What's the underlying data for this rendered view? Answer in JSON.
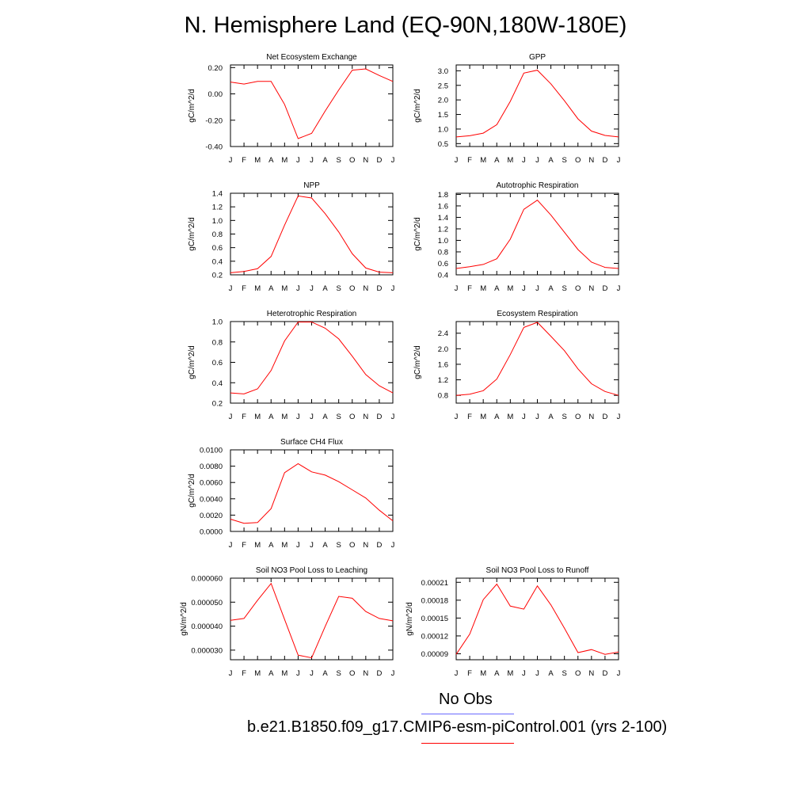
{
  "title": "N. Hemisphere Land (EQ-90N,180W-180E)",
  "colors": {
    "series": "#ff0000",
    "obs": "#6a6aff",
    "axis": "#000000"
  },
  "months": [
    "J",
    "F",
    "M",
    "A",
    "M",
    "J",
    "J",
    "A",
    "S",
    "O",
    "N",
    "D",
    "J"
  ],
  "legend": {
    "obs_label": "No Obs",
    "model_label": "b.e21.B1850.f09_g17.CMIP6-esm-piControl.001 (yrs 2-100)"
  },
  "chart_data": [
    {
      "type": "line",
      "title": "Net Ecosystem Exchange",
      "ylabel": "gC/m^2/d",
      "ylim": [
        -0.4,
        0.22
      ],
      "yticks": [
        -0.4,
        -0.2,
        0.0,
        0.2
      ],
      "ytick_labels": [
        "-0.40",
        "-0.20",
        "0.00",
        "0.20"
      ],
      "values": [
        0.09,
        0.075,
        0.095,
        0.095,
        -0.08,
        -0.34,
        -0.3,
        -0.13,
        0.03,
        0.18,
        0.19,
        0.14,
        0.095
      ]
    },
    {
      "type": "line",
      "title": "GPP",
      "ylabel": "gC/m^2/d",
      "ylim": [
        0.4,
        3.2
      ],
      "yticks": [
        0.5,
        1.0,
        1.5,
        2.0,
        2.5,
        3.0
      ],
      "ytick_labels": [
        "0.5",
        "1.0",
        "1.5",
        "2.0",
        "2.5",
        "3.0"
      ],
      "values": [
        0.73,
        0.77,
        0.86,
        1.15,
        1.95,
        2.92,
        3.02,
        2.55,
        1.97,
        1.35,
        0.93,
        0.78,
        0.73
      ]
    },
    {
      "type": "line",
      "title": "NPP",
      "ylabel": "gC/m^2/d",
      "ylim": [
        0.2,
        1.4
      ],
      "yticks": [
        0.2,
        0.4,
        0.6,
        0.8,
        1.0,
        1.2,
        1.4
      ],
      "ytick_labels": [
        "0.2",
        "0.4",
        "0.6",
        "0.8",
        "1.0",
        "1.2",
        "1.4"
      ],
      "values": [
        0.23,
        0.25,
        0.29,
        0.47,
        0.93,
        1.36,
        1.33,
        1.1,
        0.83,
        0.51,
        0.3,
        0.24,
        0.23
      ]
    },
    {
      "type": "line",
      "title": "Autotrophic Respiration",
      "ylabel": "gC/m^2/d",
      "ylim": [
        0.4,
        1.82
      ],
      "yticks": [
        0.4,
        0.6,
        0.8,
        1.0,
        1.2,
        1.4,
        1.6,
        1.8
      ],
      "ytick_labels": [
        "0.4",
        "0.6",
        "0.8",
        "1.0",
        "1.2",
        "1.4",
        "1.6",
        "1.8"
      ],
      "values": [
        0.51,
        0.54,
        0.58,
        0.68,
        1.02,
        1.54,
        1.7,
        1.44,
        1.14,
        0.84,
        0.62,
        0.53,
        0.51
      ]
    },
    {
      "type": "line",
      "title": "Heterotrophic Respiration",
      "ylabel": "gC/m^2/d",
      "ylim": [
        0.2,
        1.0
      ],
      "yticks": [
        0.2,
        0.4,
        0.6,
        0.8,
        1.0
      ],
      "ytick_labels": [
        "0.2",
        "0.4",
        "0.6",
        "0.8",
        "1.0"
      ],
      "values": [
        0.3,
        0.29,
        0.34,
        0.52,
        0.81,
        0.995,
        0.995,
        0.935,
        0.83,
        0.66,
        0.48,
        0.37,
        0.3
      ]
    },
    {
      "type": "line",
      "title": "Ecosystem Respiration",
      "ylabel": "gC/m^2/d",
      "ylim": [
        0.6,
        2.7
      ],
      "yticks": [
        0.8,
        1.2,
        1.6,
        2.0,
        2.4
      ],
      "ytick_labels": [
        "0.8",
        "1.2",
        "1.6",
        "2.0",
        "2.4"
      ],
      "values": [
        0.8,
        0.83,
        0.92,
        1.22,
        1.85,
        2.55,
        2.68,
        2.32,
        1.95,
        1.48,
        1.1,
        0.9,
        0.8
      ]
    },
    {
      "type": "line",
      "title": "Surface CH4 Flux",
      "ylabel": "gC/m^2/d",
      "ylim": [
        0.0,
        0.01
      ],
      "yticks": [
        0.0,
        0.002,
        0.004,
        0.006,
        0.008,
        0.01
      ],
      "ytick_labels": [
        "0.0000",
        "0.0020",
        "0.0040",
        "0.0060",
        "0.0080",
        "0.0100"
      ],
      "values": [
        0.0015,
        0.001,
        0.0011,
        0.0028,
        0.0072,
        0.0083,
        0.0073,
        0.0069,
        0.0061,
        0.0051,
        0.0041,
        0.0026,
        0.0013
      ]
    },
    {
      "type": "line",
      "title": "Soil NO3 Pool Loss to Leaching",
      "ylabel": "gN/m^2/d",
      "ylim": [
        2.6e-05,
        6e-05
      ],
      "yticks": [
        3e-05,
        4e-05,
        5e-05,
        6e-05
      ],
      "ytick_labels": [
        "0.000030",
        "0.000040",
        "0.000050",
        "0.000060"
      ],
      "values": [
        4.24e-05,
        4.32e-05,
        5.08e-05,
        5.78e-05,
        4.28e-05,
        2.79e-05,
        2.68e-05,
        3.99e-05,
        5.24e-05,
        5.16e-05,
        4.61e-05,
        4.32e-05,
        4.22e-05
      ]
    },
    {
      "type": "line",
      "title": "Soil NO3 Pool Loss to Runoff",
      "ylabel": "gN/m^2/d",
      "ylim": [
        8e-05,
        0.000217
      ],
      "yticks": [
        9e-05,
        0.00012,
        0.00015,
        0.00018,
        0.00021
      ],
      "ytick_labels": [
        "0.00009",
        "0.00012",
        "0.00015",
        "0.00018",
        "0.00021"
      ],
      "values": [
        8.9e-05,
        0.000123,
        0.000181,
        0.000207,
        0.00017,
        0.000165,
        0.000204,
        0.000172,
        0.000133,
        9.2e-05,
        9.7e-05,
        8.9e-05,
        9.3e-05
      ]
    }
  ]
}
